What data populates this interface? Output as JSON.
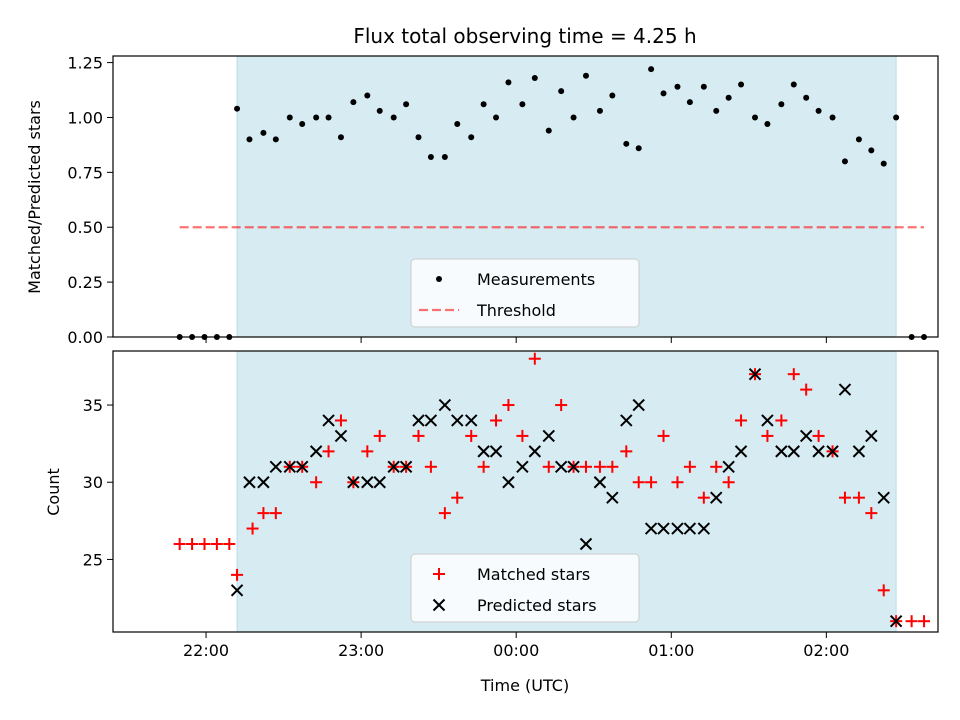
{
  "chart_data": {
    "title": "Flux total observing time = 4.25 h",
    "xlabel": "Time (UTC)",
    "x_unit": "hours since 21:00 UTC",
    "xlim": [
      21.4,
      26.72
    ],
    "xticks": [
      {
        "value": 22,
        "label": "22:00"
      },
      {
        "value": 23,
        "label": "23:00"
      },
      {
        "value": 24,
        "label": "00:00"
      },
      {
        "value": 25,
        "label": "01:00"
      },
      {
        "value": 26,
        "label": "02:00"
      }
    ],
    "shaded_span": {
      "x_start": 22.2,
      "x_end": 26.45,
      "color": "#add8e6"
    },
    "colors": {
      "measurements": "#000000",
      "threshold": "#ff0000",
      "matched": "#ff0000",
      "predicted": "#000000",
      "shade": "#add8e6"
    },
    "panels": [
      {
        "type": "scatter",
        "ylabel": "Matched/Predicted stars",
        "ylim": [
          0,
          1.28
        ],
        "yticks": [
          "0.00",
          "0.25",
          "0.50",
          "0.75",
          "1.00",
          "1.25"
        ],
        "legend": {
          "placement": "lower-center",
          "entries": [
            "Measurements",
            "Threshold"
          ]
        },
        "threshold": {
          "name": "Threshold",
          "value": 0.5,
          "x_range": [
            21.83,
            26.63
          ]
        },
        "series": [
          {
            "name": "Measurements",
            "marker": "dot",
            "x": [
              21.83,
              21.91,
              21.99,
              22.07,
              22.15,
              22.2,
              22.28,
              22.37,
              22.45,
              22.54,
              22.62,
              22.71,
              22.79,
              22.87,
              22.95,
              23.04,
              23.12,
              23.21,
              23.29,
              23.37,
              23.45,
              23.54,
              23.62,
              23.71,
              23.79,
              23.87,
              23.95,
              24.04,
              24.12,
              24.21,
              24.29,
              24.37,
              24.45,
              24.54,
              24.62,
              24.71,
              24.79,
              24.87,
              24.95,
              25.04,
              25.12,
              25.21,
              25.29,
              25.37,
              25.45,
              25.54,
              25.62,
              25.71,
              25.79,
              25.87,
              25.95,
              26.04,
              26.12,
              26.21,
              26.29,
              26.37,
              26.45,
              26.55,
              26.63
            ],
            "y": [
              0,
              0,
              0,
              0,
              0,
              1.04,
              0.9,
              0.93,
              0.9,
              1.0,
              0.97,
              1.0,
              1.0,
              0.91,
              1.07,
              1.1,
              1.03,
              1.0,
              1.06,
              0.91,
              0.82,
              0.82,
              0.97,
              0.91,
              1.06,
              1.0,
              1.16,
              1.06,
              1.18,
              0.94,
              1.12,
              1.0,
              1.19,
              1.03,
              1.1,
              0.88,
              0.86,
              1.22,
              1.11,
              1.14,
              1.07,
              1.14,
              1.03,
              1.09,
              1.15,
              1.0,
              0.97,
              1.06,
              1.15,
              1.09,
              1.03,
              1.0,
              0.8,
              0.9,
              0.85,
              0.79,
              1.0,
              0,
              0
            ]
          }
        ]
      },
      {
        "type": "scatter",
        "ylabel": "Count",
        "ylim": [
          20.3,
          38.5
        ],
        "yticks": [
          "25",
          "30",
          "35"
        ],
        "legend": {
          "placement": "lower-center",
          "entries": [
            "Matched stars",
            "Predicted stars"
          ]
        },
        "series": [
          {
            "name": "Matched stars",
            "marker": "plus",
            "x": [
              21.83,
              21.91,
              21.99,
              22.07,
              22.15,
              22.2,
              22.3,
              22.37,
              22.45,
              22.54,
              22.62,
              22.71,
              22.79,
              22.87,
              22.95,
              23.04,
              23.12,
              23.21,
              23.29,
              23.37,
              23.45,
              23.54,
              23.62,
              23.71,
              23.79,
              23.87,
              23.95,
              24.04,
              24.12,
              24.21,
              24.29,
              24.37,
              24.45,
              24.54,
              24.62,
              24.71,
              24.79,
              24.87,
              24.95,
              25.04,
              25.12,
              25.21,
              25.29,
              25.37,
              25.45,
              25.54,
              25.62,
              25.71,
              25.79,
              25.87,
              25.95,
              26.04,
              26.12,
              26.21,
              26.29,
              26.37,
              26.45,
              26.55,
              26.63
            ],
            "y": [
              26,
              26,
              26,
              26,
              26,
              24,
              27,
              28,
              28,
              31,
              31,
              30,
              32,
              34,
              30,
              32,
              33,
              31,
              31,
              33,
              31,
              28,
              29,
              33,
              31,
              34,
              35,
              33,
              38,
              31,
              35,
              31,
              31,
              31,
              31,
              32,
              30,
              30,
              33,
              30,
              31,
              29,
              31,
              30,
              34,
              37,
              33,
              34,
              37,
              36,
              33,
              32,
              29,
              29,
              28,
              23,
              21,
              21,
              21
            ]
          },
          {
            "name": "Predicted stars",
            "marker": "x",
            "x": [
              22.2,
              22.28,
              22.37,
              22.45,
              22.54,
              22.62,
              22.71,
              22.79,
              22.87,
              22.95,
              23.04,
              23.12,
              23.21,
              23.29,
              23.37,
              23.45,
              23.54,
              23.62,
              23.71,
              23.79,
              23.87,
              23.95,
              24.04,
              24.12,
              24.21,
              24.29,
              24.37,
              24.45,
              24.54,
              24.62,
              24.71,
              24.79,
              24.87,
              24.95,
              25.04,
              25.12,
              25.21,
              25.29,
              25.37,
              25.45,
              25.54,
              25.62,
              25.71,
              25.79,
              25.87,
              25.95,
              26.04,
              26.12,
              26.21,
              26.29,
              26.37,
              26.45
            ],
            "y": [
              23,
              30,
              30,
              31,
              31,
              31,
              32,
              34,
              33,
              30,
              30,
              30,
              31,
              31,
              34,
              34,
              35,
              34,
              34,
              32,
              32,
              30,
              31,
              32,
              33,
              31,
              31,
              26,
              30,
              29,
              34,
              35,
              27,
              27,
              27,
              27,
              27,
              29,
              31,
              32,
              37,
              34,
              32,
              32,
              33,
              32,
              32,
              36,
              32,
              33,
              29,
              21
            ]
          }
        ]
      }
    ]
  }
}
